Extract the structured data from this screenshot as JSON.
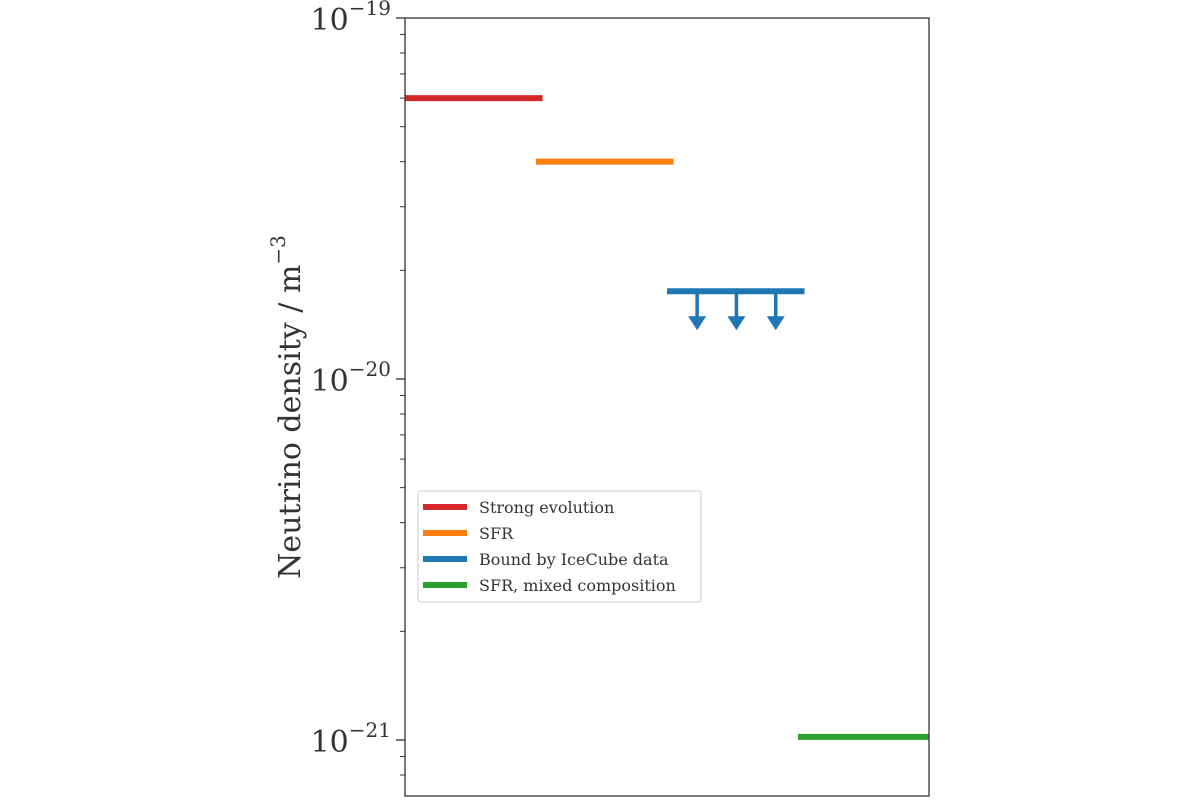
{
  "chart_data": {
    "type": "bar",
    "yscale": "log",
    "ylim": [
      7e-22,
      1e-19
    ],
    "xlim": [
      0,
      4
    ],
    "ylabel_text": "Neutrino density / m",
    "ylabel_exp": "−3",
    "major_ticks": [
      {
        "value": 1e-19,
        "base": "10",
        "exp": "−19"
      },
      {
        "value": 1e-20,
        "base": "10",
        "exp": "−20"
      },
      {
        "value": 1e-21,
        "base": "10",
        "exp": "−21"
      }
    ],
    "minor_ticks": [
      8e-22,
      9e-22,
      2e-21,
      3e-21,
      4e-21,
      5e-21,
      6e-21,
      7e-21,
      8e-21,
      9e-21,
      2e-20,
      3e-20,
      4e-20,
      5e-20,
      6e-20,
      7e-20,
      8e-20,
      9e-20
    ],
    "series": [
      {
        "name": "Strong evolution",
        "x": [
          0,
          1.05
        ],
        "y": 6e-20,
        "color": "#d62728",
        "upper_limit": false
      },
      {
        "name": "SFR",
        "x": [
          1.0,
          2.05
        ],
        "y": 4e-20,
        "color": "#ff7f0e",
        "upper_limit": false
      },
      {
        "name": "Bound by IceCube data",
        "x": [
          2.0,
          3.05
        ],
        "y": 1.75e-20,
        "color": "#1f77b4",
        "upper_limit": true,
        "arrow_x": [
          2.23,
          2.53,
          2.83
        ]
      },
      {
        "name": "SFR, mixed composition",
        "x": [
          3.0,
          4.0
        ],
        "y": 1.02e-21,
        "color": "#2ca02c",
        "upper_limit": false
      }
    ],
    "legend_position": "center-left",
    "grid": false
  }
}
